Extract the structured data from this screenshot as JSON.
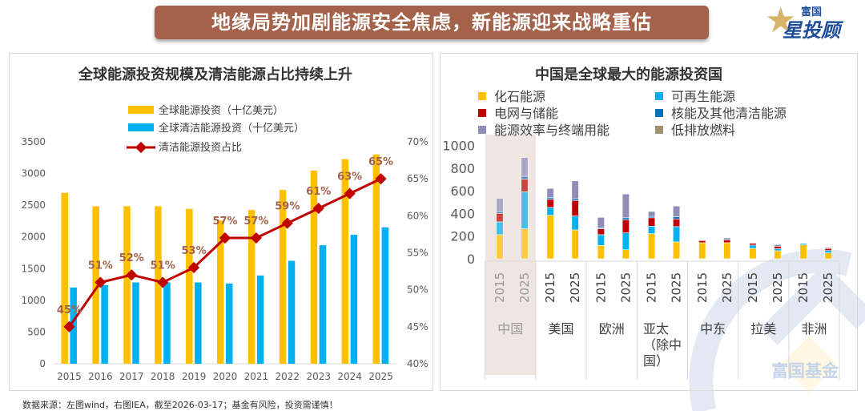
{
  "header": {
    "title": "地缘局势加剧能源安全焦虑，新能源迎来战略重估",
    "logo_top": "富国",
    "logo_bottom": "星投顾"
  },
  "watermark": "富国基金",
  "footer": "数据来源：左图wind，右图IEA，截至2026-03-17；基金有风险，投资需谨慎！",
  "chart_data": [
    {
      "type": "bar+line",
      "title": "全球能源投资规模及清洁能源占比持续上升",
      "categories": [
        "2015",
        "2016",
        "2017",
        "2018",
        "2019",
        "2020",
        "2021",
        "2022",
        "2023",
        "2024",
        "2025"
      ],
      "series": [
        {
          "name": "全球能源投资（十亿美元）",
          "type": "bar",
          "color": "#FFC000",
          "values": [
            2695,
            2484,
            2484,
            2484,
            2442,
            2260,
            2425,
            2741,
            3045,
            3226,
            3300
          ]
        },
        {
          "name": "全球清洁能源投资（十亿美元）",
          "type": "bar",
          "color": "#00B0F0",
          "values": [
            1202,
            1240,
            1282,
            1282,
            1282,
            1265,
            1392,
            1624,
            1868,
            2033,
            2151
          ]
        },
        {
          "name": "清洁能源投资占比",
          "type": "line",
          "axis": "right",
          "color": "#C00000",
          "values": [
            45,
            51,
            52,
            51,
            53,
            57,
            57,
            59,
            61,
            63,
            65
          ],
          "labels": [
            "45%",
            "51%",
            "52%",
            "51%",
            "53%",
            "57%",
            "57%",
            "59%",
            "61%",
            "63%",
            "65%"
          ]
        }
      ],
      "y_left": {
        "ylim": [
          0,
          3500
        ],
        "ticks": [
          "0",
          "500",
          "1000",
          "1500",
          "2000",
          "2500",
          "3000",
          "3500"
        ]
      },
      "y_right": {
        "ylim": [
          40,
          70
        ],
        "ticks": [
          "40%",
          "45%",
          "50%",
          "55%",
          "60%",
          "65%",
          "70%"
        ]
      },
      "legend": "top-left",
      "grid": false
    },
    {
      "type": "stacked-bar",
      "title": "中国是全球最大的能源投资国",
      "legend": [
        "化石能源",
        "可再生能源",
        "电网与储能",
        "核能及其他清洁能源",
        "能源效率与终端用能",
        "低排放燃料"
      ],
      "colors": [
        "#FFC000",
        "#00B0F0",
        "#C00000",
        "#0070C0",
        "#8E8CB8",
        "#A09070"
      ],
      "groups": [
        "中国",
        "美国",
        "欧洲",
        "亚太（除中国）",
        "中东",
        "拉美",
        "非洲"
      ],
      "years": [
        "2015",
        "2025"
      ],
      "highlight_group": "中国",
      "values": [
        [
          [
            213,
            113,
            76,
            14,
            118,
            0
          ],
          [
            265,
            326,
            113,
            24,
            166,
            0
          ]
        ],
        [
          [
            385,
            69,
            71,
            14,
            83,
            0
          ],
          [
            255,
            123,
            137,
            15,
            158,
            0
          ]
        ],
        [
          [
            118,
            95,
            52,
            9,
            92,
            0
          ],
          [
            80,
            149,
            116,
            17,
            210,
            0
          ]
        ],
        [
          [
            222,
            66,
            74,
            12,
            44,
            0
          ],
          [
            149,
            135,
            68,
            19,
            95,
            0
          ]
        ],
        [
          [
            142,
            0,
            19,
            4,
            3,
            0
          ],
          [
            142,
            0,
            23,
            0,
            19,
            0
          ]
        ],
        [
          [
            92,
            29,
            16,
            0,
            0,
            0
          ],
          [
            71,
            19,
            21,
            0,
            14,
            0
          ]
        ],
        [
          [
            123,
            12,
            0,
            0,
            0,
            0
          ],
          [
            52,
            21,
            17,
            0,
            9,
            0
          ]
        ]
      ],
      "y": {
        "ylim": [
          0,
          1000
        ],
        "ticks": [
          "0",
          "200",
          "400",
          "600",
          "800",
          "1000"
        ]
      },
      "grid": false
    }
  ]
}
